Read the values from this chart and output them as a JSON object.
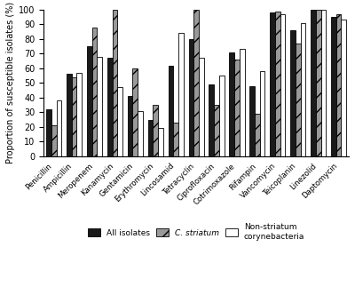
{
  "categories": [
    "Penicillin",
    "Ampicillin",
    "Meropenem",
    "Kanamycin",
    "Gentamicin",
    "Erythromycin",
    "Lincosamid",
    "Tetracyclin",
    "Ciprofloxacin",
    "Cotrimoxazole",
    "Rifampin",
    "Vancomycin",
    "Teicoplanin",
    "Linezolid",
    "Daptomycin"
  ],
  "all_isolates": [
    32,
    56,
    75,
    67,
    41,
    25,
    62,
    80,
    49,
    71,
    48,
    98,
    86,
    100,
    95
  ],
  "c_striatum": [
    21,
    54,
    88,
    100,
    60,
    35,
    23,
    100,
    35,
    66,
    29,
    99,
    77,
    100,
    97
  ],
  "non_striatum": [
    38,
    57,
    68,
    47,
    31,
    19,
    84,
    67,
    55,
    73,
    58,
    97,
    91,
    100,
    93
  ],
  "ylabel": "Proportion of susceptible isolates (%)",
  "ylim": [
    0,
    100
  ],
  "legend_labels": [
    "All isolates",
    "C. striatum",
    "Non-striatum\ncorynebacteria"
  ],
  "bar_colors": [
    "#1a1a1a",
    "#999999",
    "#ffffff"
  ],
  "bar_edgecolor": "#000000",
  "bar_hatch": [
    "",
    "//",
    ""
  ],
  "yticks": [
    0,
    10,
    20,
    30,
    40,
    50,
    60,
    70,
    80,
    90,
    100
  ]
}
